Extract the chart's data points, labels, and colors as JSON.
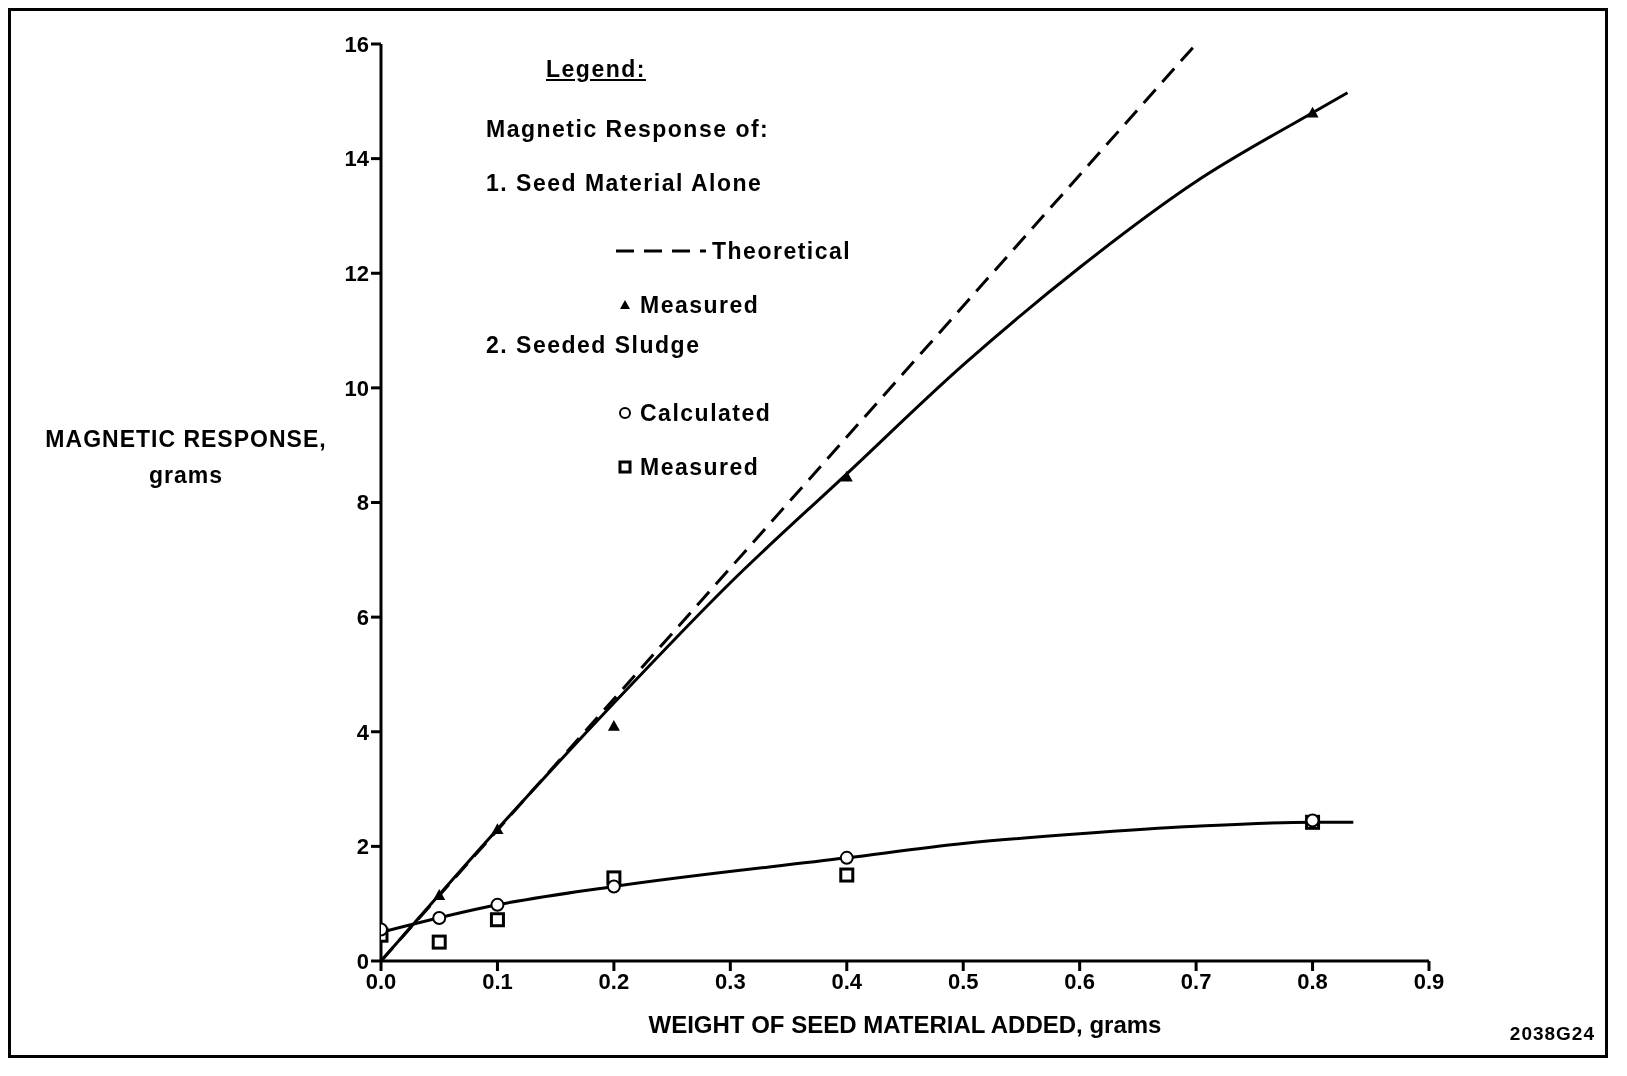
{
  "chart_data": {
    "type": "line",
    "xlabel": "WEIGHT OF SEED MATERIAL ADDED, grams",
    "ylabel": "MAGNETIC RESPONSE,\ngrams",
    "legend_title": "Legend:",
    "legend": "top left",
    "annotations": [
      "Magnetic Response of:",
      "1. Seed Material Alone",
      "2. Seeded Sludge",
      "2038G24"
    ],
    "xlim": [
      0,
      0.9
    ],
    "xticks": [
      {
        "value": 0,
        "label": "0.0"
      },
      0.1,
      0.2,
      0.3,
      0.4,
      0.5,
      0.6,
      0.7,
      0.8,
      0.9
    ],
    "ylim": [
      0,
      16
    ],
    "yticks": [
      0,
      2,
      4,
      6,
      8,
      10,
      12,
      14,
      16
    ],
    "series": [
      {
        "name": "Theoretical",
        "line_style": "dashed",
        "marker": "none",
        "color": "#000000",
        "x": [
          0,
          0.7
        ],
        "values": [
          0,
          16
        ]
      },
      {
        "name": "Measured",
        "type": "scatter",
        "marker": "triangle",
        "color": "#000000",
        "x": [
          0.05,
          0.1,
          0.2,
          0.4,
          0.8
        ],
        "values": [
          1.15,
          2.3,
          4.1,
          8.45,
          14.8
        ]
      },
      {
        "name": "Calculated",
        "type": "scatter",
        "marker": "circle",
        "color": "#000000",
        "x": [
          0,
          0.05,
          0.1,
          0.2,
          0.4,
          0.8
        ],
        "values": [
          0.55,
          0.75,
          0.98,
          1.3,
          1.8,
          2.45
        ]
      },
      {
        "name": "Measured",
        "type": "scatter",
        "marker": "square",
        "color": "#000000",
        "x": [
          0,
          0.05,
          0.1,
          0.2,
          0.4,
          0.8
        ],
        "values": [
          0.45,
          0.33,
          0.72,
          1.45,
          1.5,
          2.42
        ]
      },
      {
        "line_style": "solid",
        "marker": "none",
        "color": "#000000",
        "x": [
          0,
          0.1,
          0.2,
          0.3,
          0.4,
          0.5,
          0.6,
          0.7,
          0.8,
          0.83
        ],
        "values": [
          0,
          2.3,
          4.5,
          6.6,
          8.5,
          10.4,
          12.1,
          13.6,
          14.8,
          15.15
        ]
      },
      {
        "line_style": "solid",
        "marker": "none",
        "color": "#000000",
        "x": [
          0,
          0.1,
          0.2,
          0.4,
          0.5,
          0.6,
          0.7,
          0.8,
          0.835
        ],
        "values": [
          0.5,
          0.98,
          1.3,
          1.8,
          2.05,
          2.22,
          2.35,
          2.42,
          2.42
        ]
      }
    ]
  }
}
